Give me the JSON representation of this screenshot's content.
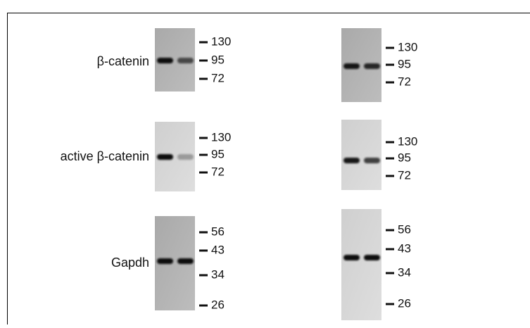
{
  "rows": [
    {
      "label": "β-catenin",
      "left_markers": [
        "130",
        "95",
        "72"
      ],
      "right_markers": [
        "130",
        "95",
        "72"
      ]
    },
    {
      "label": "active β-catenin",
      "left_markers": [
        "130",
        "95",
        "72"
      ],
      "right_markers": [
        "130",
        "95",
        "72"
      ]
    },
    {
      "label": "Gapdh",
      "left_markers": [
        "56",
        "43",
        "34",
        "26"
      ],
      "right_markers": [
        "56",
        "43",
        "34",
        "26"
      ]
    }
  ]
}
